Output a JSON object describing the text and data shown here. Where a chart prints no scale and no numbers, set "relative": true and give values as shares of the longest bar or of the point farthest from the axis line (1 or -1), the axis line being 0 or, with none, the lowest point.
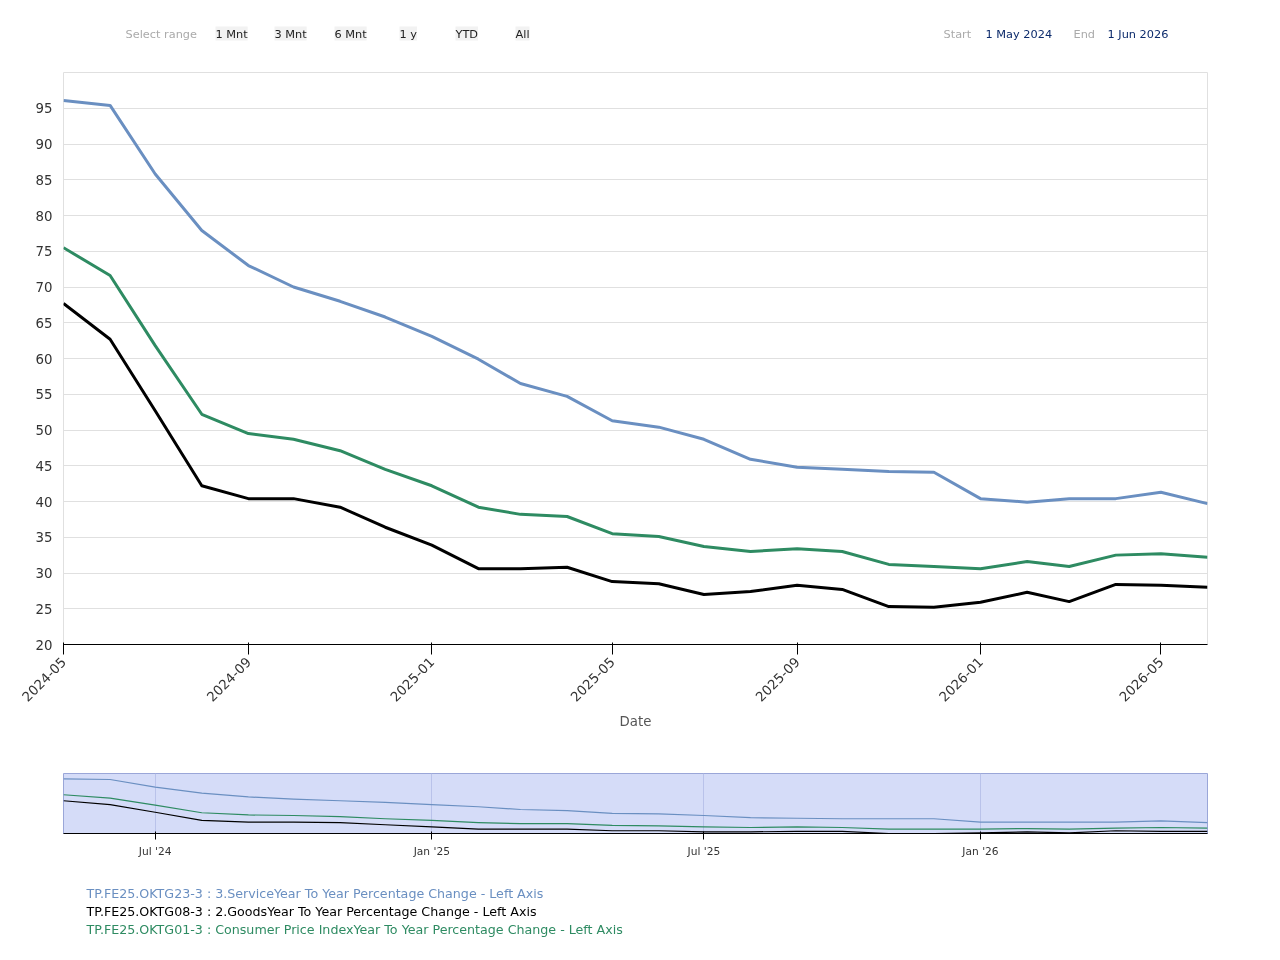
{
  "chart_data": [
    {
      "type": "line",
      "xlabel": "Date",
      "x": [
        "2024-05",
        "2024-06",
        "2024-07",
        "2024-08",
        "2024-09",
        "2024-10",
        "2024-11",
        "2024-12",
        "2025-01",
        "2025-02",
        "2025-03",
        "2025-04",
        "2025-05",
        "2025-06",
        "2025-07",
        "2025-08",
        "2025-09",
        "2025-10",
        "2025-11",
        "2025-12",
        "2026-01",
        "2026-02",
        "2026-03",
        "2026-04",
        "2026-05",
        "2026-06"
      ],
      "series": [
        {
          "name": "TP.FE25.OKTG23-3 : 3.ServiceYear To Year Percentage Change - Left Axis",
          "color": "#6a8fc1",
          "values": [
            96.1,
            95.4,
            85.8,
            77.9,
            73.0,
            70.0,
            68.0,
            65.8,
            63.1,
            59.9,
            56.5,
            54.7,
            51.3,
            50.4,
            48.7,
            45.9,
            44.8,
            44.5,
            44.2,
            44.1,
            40.4,
            39.9,
            40.4,
            40.4,
            41.3,
            39.7
          ]
        },
        {
          "name": "TP.FE25.OKTG08-3 : 2.GoodsYear To Year Percentage Change - Left Axis",
          "color": "#000000",
          "values": [
            67.7,
            62.7,
            52.7,
            42.2,
            40.4,
            40.4,
            39.2,
            36.4,
            33.9,
            30.6,
            30.6,
            30.8,
            28.8,
            28.5,
            27.0,
            27.4,
            28.3,
            27.7,
            25.3,
            25.2,
            25.9,
            27.3,
            26.0,
            28.4,
            28.3,
            28.0
          ]
        },
        {
          "name": "TP.FE25.OKTG01-3 : Consumer Price IndexYear To Year Percentage Change - Left Axis",
          "color": "#2e8b62",
          "values": [
            75.5,
            71.6,
            61.8,
            52.2,
            49.5,
            48.7,
            47.1,
            44.5,
            42.2,
            39.2,
            38.2,
            37.9,
            35.5,
            35.1,
            33.7,
            33.0,
            33.4,
            33.0,
            31.2,
            30.9,
            30.6,
            31.6,
            30.9,
            32.5,
            32.7,
            32.2
          ]
        }
      ],
      "xlim": [
        "2024-05",
        "2026-06"
      ],
      "xticks": [
        "2024-05",
        "2024-09",
        "2025-01",
        "2025-05",
        "2025-09",
        "2026-01",
        "2026-05"
      ],
      "ylim": [
        20,
        100
      ],
      "yticks": [
        20,
        25,
        30,
        35,
        40,
        45,
        50,
        55,
        60,
        65,
        70,
        75,
        80,
        85,
        90,
        95,
        {
          "value": 100,
          "label": null
        }
      ],
      "grid": "y",
      "legend": "bottom",
      "marker": "none",
      "line_style": "solid",
      "annotations": [
        "Select range",
        "1 Mnt",
        "3 Mnt",
        "6 Mnt",
        "1 y",
        "YTD",
        "All",
        "Start",
        "1 May 2024",
        "End",
        "1 Jun 2026"
      ]
    },
    {
      "type": "line",
      "x": [
        "2024-05",
        "2024-06",
        "2024-07",
        "2024-08",
        "2024-09",
        "2024-10",
        "2024-11",
        "2024-12",
        "2025-01",
        "2025-02",
        "2025-03",
        "2025-04",
        "2025-05",
        "2025-06",
        "2025-07",
        "2025-08",
        "2025-09",
        "2025-10",
        "2025-11",
        "2025-12",
        "2026-01",
        "2026-02",
        "2026-03",
        "2026-04",
        "2026-05",
        "2026-06"
      ],
      "series": [
        {
          "color": "#6a8fc1",
          "values": [
            1.0,
            0.99,
            0.85,
            0.74,
            0.67,
            0.63,
            0.6,
            0.57,
            0.53,
            0.49,
            0.44,
            0.42,
            0.37,
            0.36,
            0.33,
            0.29,
            0.28,
            0.27,
            0.27,
            0.27,
            0.21,
            0.21,
            0.21,
            0.21,
            0.23,
            0.2
          ]
        },
        {
          "color": "#000000",
          "values": [
            0.6,
            0.53,
            0.39,
            0.24,
            0.21,
            0.21,
            0.2,
            0.16,
            0.12,
            0.08,
            0.08,
            0.08,
            0.05,
            0.05,
            0.03,
            0.03,
            0.04,
            0.04,
            0.0,
            0.0,
            0.01,
            0.03,
            0.01,
            0.05,
            0.04,
            0.04
          ]
        },
        {
          "color": "#2e8b62",
          "values": [
            0.71,
            0.65,
            0.52,
            0.38,
            0.34,
            0.33,
            0.31,
            0.27,
            0.24,
            0.2,
            0.18,
            0.18,
            0.15,
            0.14,
            0.12,
            0.11,
            0.12,
            0.11,
            0.08,
            0.08,
            0.08,
            0.09,
            0.08,
            0.1,
            0.11,
            0.1
          ]
        }
      ],
      "xlim": [
        "2024-05",
        "2026-06"
      ],
      "xticks": [
        {
          "value": "2024-07",
          "label": "Jul '24"
        },
        {
          "value": "2025-01",
          "label": "Jan '25"
        },
        {
          "value": "2025-07",
          "label": "Jul '25"
        },
        {
          "value": "2026-01",
          "label": "Jan '26"
        }
      ],
      "relative": true,
      "tick_labels": "x",
      "grid": "x",
      "marker": "none",
      "line_style": "solid"
    }
  ]
}
